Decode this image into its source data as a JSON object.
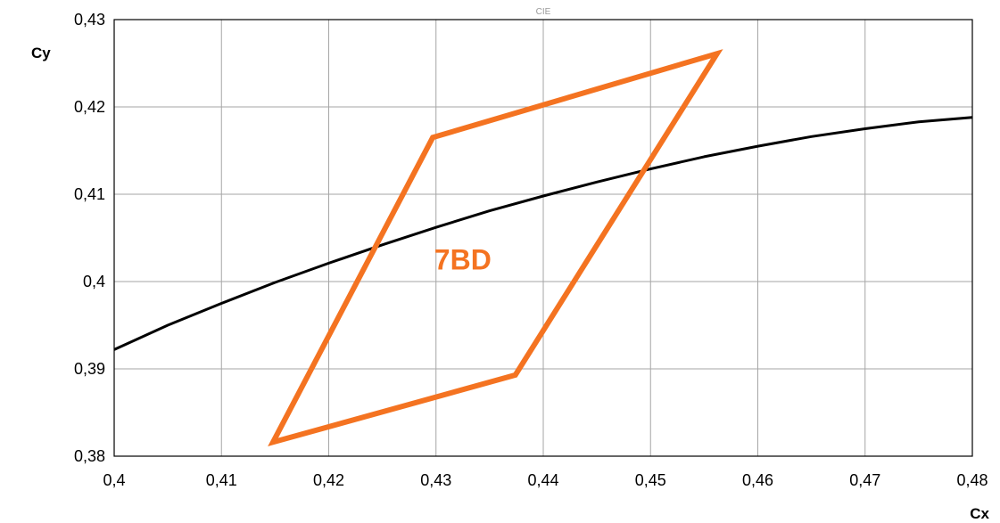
{
  "chart_data": {
    "type": "line",
    "title": "CIE",
    "xlabel": "Cx",
    "ylabel": "Cy",
    "xlim": [
      0.4,
      0.48
    ],
    "ylim": [
      0.38,
      0.43
    ],
    "x_ticks": [
      {
        "value": 0.4,
        "label": "0,4"
      },
      {
        "value": 0.41,
        "label": "0,41"
      },
      {
        "value": 0.42,
        "label": "0,42"
      },
      {
        "value": 0.43,
        "label": "0,43"
      },
      {
        "value": 0.44,
        "label": "0,44"
      },
      {
        "value": 0.45,
        "label": "0,45"
      },
      {
        "value": 0.46,
        "label": "0,46"
      },
      {
        "value": 0.47,
        "label": "0,47"
      },
      {
        "value": 0.48,
        "label": "0,48"
      }
    ],
    "y_ticks": [
      {
        "value": 0.38,
        "label": "0,38"
      },
      {
        "value": 0.39,
        "label": "0,39"
      },
      {
        "value": 0.4,
        "label": "0,4"
      },
      {
        "value": 0.41,
        "label": "0,41"
      },
      {
        "value": 0.42,
        "label": "0,42"
      },
      {
        "value": 0.43,
        "label": "0,43"
      }
    ],
    "grid": true,
    "legend": "none",
    "series": [
      {
        "kind": "curve",
        "color": "#000000",
        "x": [
          0.4,
          0.405,
          0.41,
          0.415,
          0.42,
          0.425,
          0.43,
          0.435,
          0.44,
          0.445,
          0.45,
          0.455,
          0.46,
          0.465,
          0.47,
          0.475,
          0.48
        ],
        "y": [
          0.3922,
          0.395,
          0.3975,
          0.3999,
          0.4021,
          0.4042,
          0.4062,
          0.4081,
          0.4098,
          0.4114,
          0.4129,
          0.4143,
          0.4155,
          0.4166,
          0.4175,
          0.4183,
          0.4188
        ]
      },
      {
        "kind": "polygon",
        "color": "#F47321",
        "x": [
          0.4148,
          0.4297,
          0.4562,
          0.4374
        ],
        "y": [
          0.3816,
          0.4165,
          0.4261,
          0.3893
        ]
      }
    ],
    "annotations": [
      {
        "text": "7BD",
        "x": 0.4325,
        "y": 0.4025,
        "color": "#F47321"
      }
    ]
  }
}
